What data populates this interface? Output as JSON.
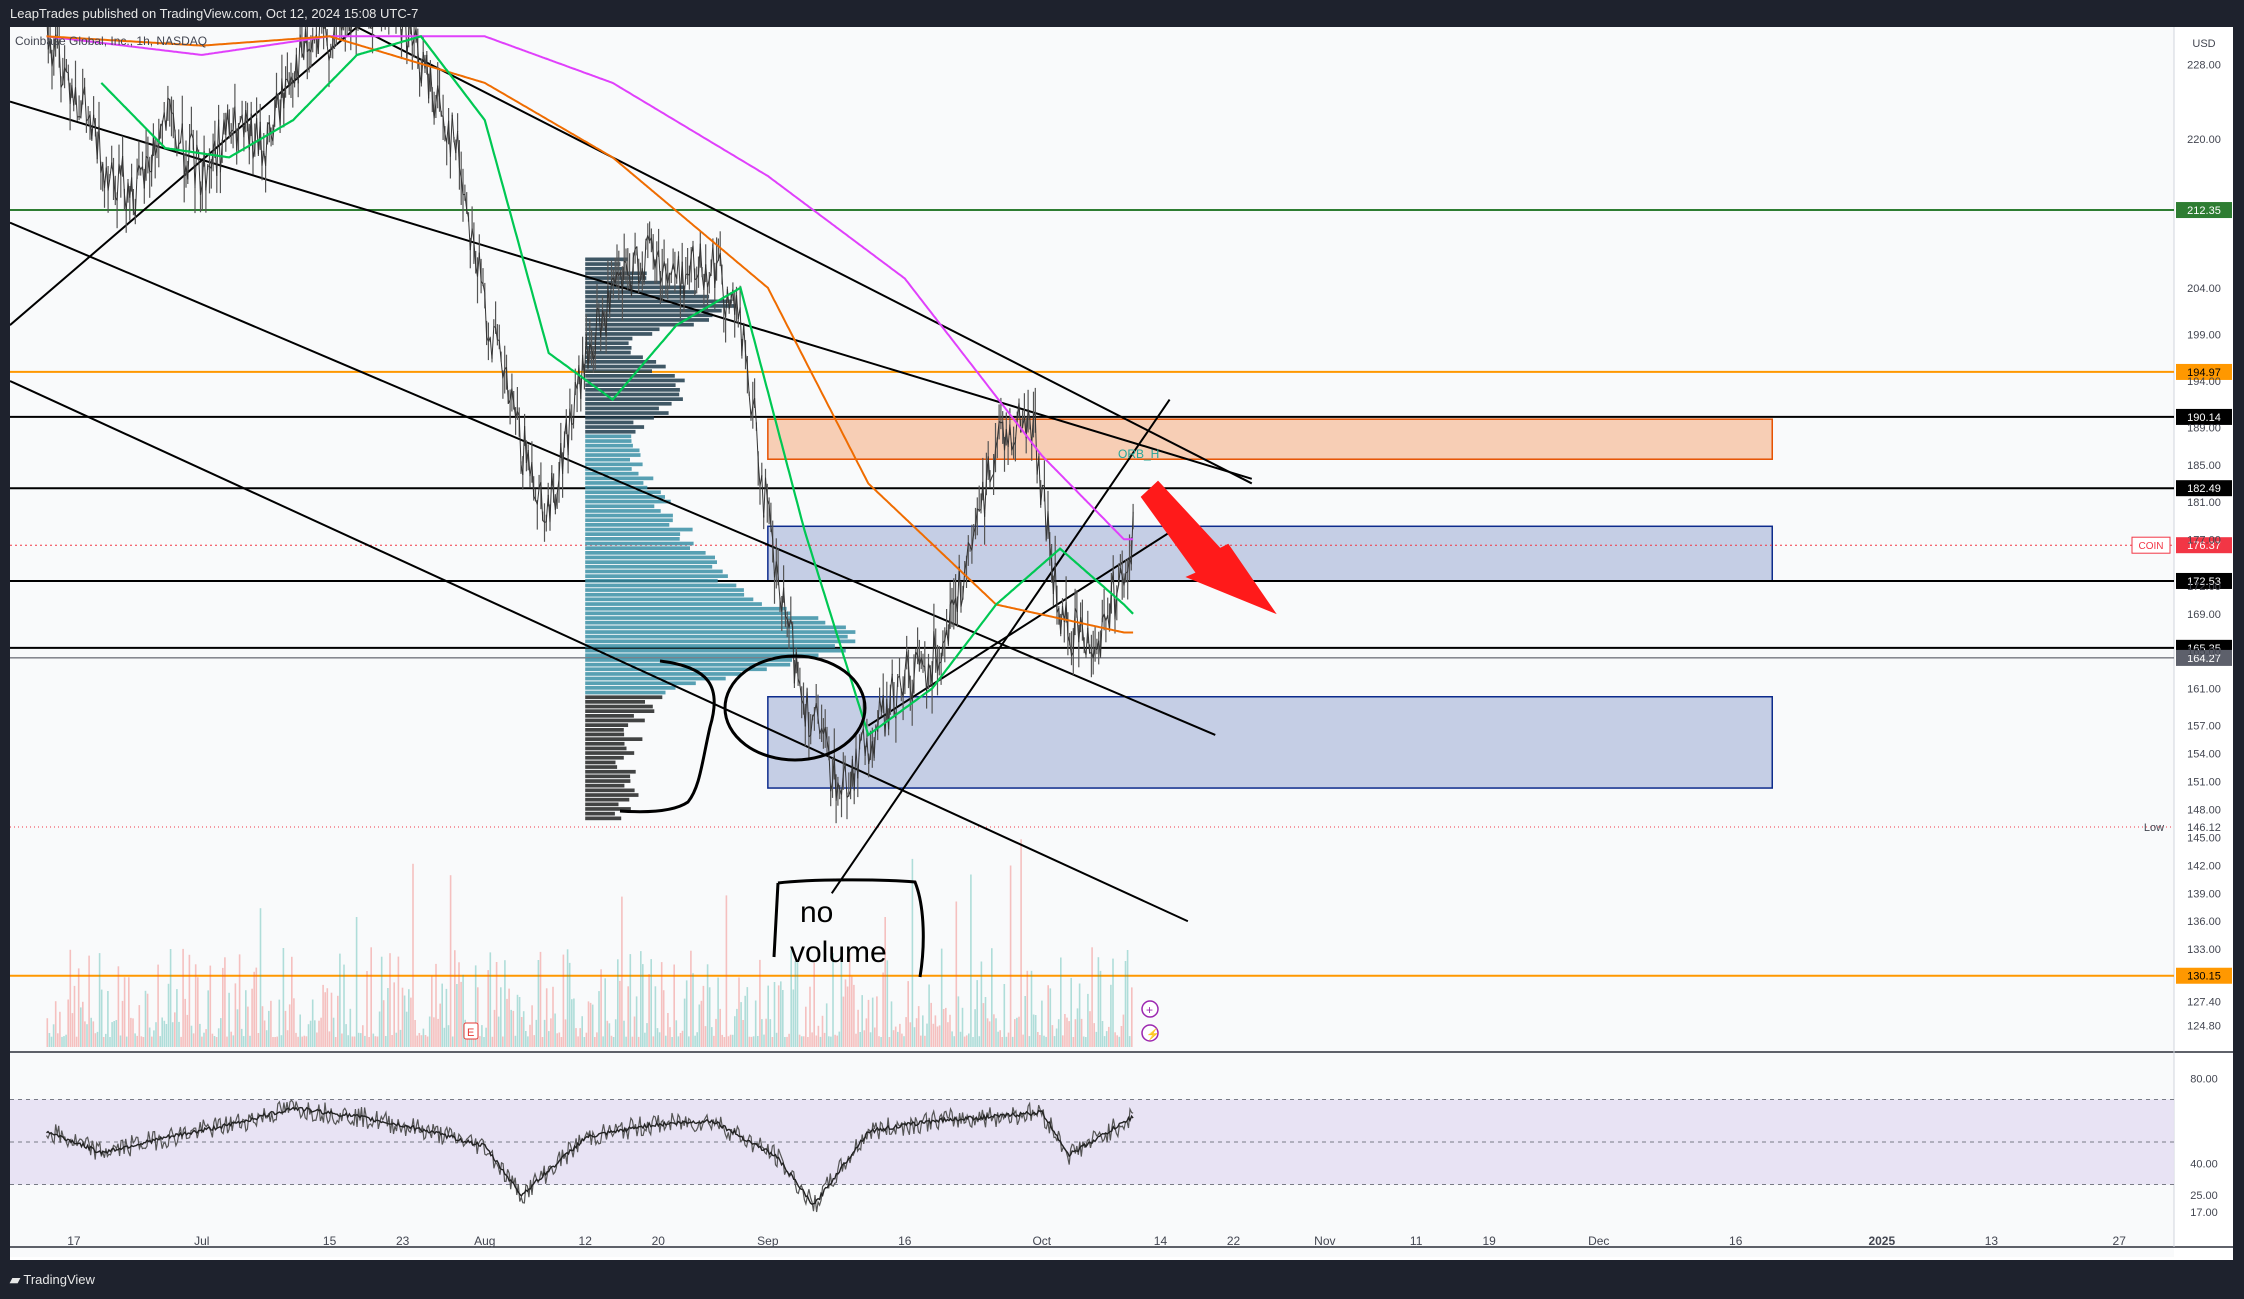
{
  "header": {
    "published": "LeapTrades published on TradingView.com, Oct 12, 2024 15:08 UTC-7"
  },
  "footer": {
    "brand": "TradingView"
  },
  "chart_data": {
    "type": "line",
    "title": "Coinbase Global, Inc., 1h, NASDAQ",
    "symbol": "COIN",
    "currency": "USD",
    "last_price": 176.37,
    "low_label": "Low",
    "low_value": 146.12,
    "ylim": [
      122.5,
      232.0
    ],
    "price_ticks": [
      228.0,
      220.0,
      204.0,
      199.0,
      194.0,
      189.0,
      185.0,
      181.0,
      177.0,
      172.0,
      169.0,
      165.0,
      161.0,
      157.0,
      154.0,
      151.0,
      148.0,
      145.0,
      142.0,
      139.0,
      136.0,
      133.0,
      127.4,
      124.8
    ],
    "price_tick_labels": [
      "228.00",
      "220.00",
      "204.00",
      "199.00",
      "194.00",
      "189.00",
      "185.00",
      "181.00",
      "177.00",
      "172.00",
      "169.00",
      "165.00",
      "161.00",
      "157.00",
      "154.00",
      "151.00",
      "148.00",
      "145.00",
      "142.00",
      "139.00",
      "136.00",
      "133.00",
      "127.40",
      "124.80"
    ],
    "horizontal_levels": [
      {
        "value": 212.35,
        "label": "212.35",
        "color": "#2e7d32"
      },
      {
        "value": 194.97,
        "label": "194.97",
        "color": "#ff9800"
      },
      {
        "value": 190.14,
        "label": "190.14",
        "color": "#000000"
      },
      {
        "value": 182.49,
        "label": "182.49",
        "color": "#000000"
      },
      {
        "value": 172.53,
        "label": "172.53",
        "color": "#000000"
      },
      {
        "value": 165.35,
        "label": "165.35",
        "color": "#000000"
      },
      {
        "value": 164.27,
        "label": "164.27",
        "color": "#434651"
      },
      {
        "value": 130.15,
        "label": "130.15",
        "color": "#ff9800"
      }
    ],
    "zones": [
      {
        "from": "2024-09-01",
        "to": "2024-12-20",
        "low": 185.6,
        "high": 189.9,
        "color": "orange"
      },
      {
        "from": "2024-09-01",
        "to": "2024-12-20",
        "low": 172.5,
        "high": 178.4,
        "color": "blue"
      },
      {
        "from": "2024-09-01",
        "to": "2024-12-20",
        "low": 150.3,
        "high": 160.1,
        "color": "blue"
      }
    ],
    "annotations": {
      "orb_label": "ORB_H",
      "note_line1": "no",
      "note_line2": "volume"
    },
    "x_ticks": [
      {
        "date": "2024-06-17",
        "label": "17"
      },
      {
        "date": "2024-07-01",
        "label": "Jul"
      },
      {
        "date": "2024-07-15",
        "label": "15"
      },
      {
        "date": "2024-07-23",
        "label": "23"
      },
      {
        "date": "2024-08-01",
        "label": "Aug"
      },
      {
        "date": "2024-08-12",
        "label": "12"
      },
      {
        "date": "2024-08-20",
        "label": "20"
      },
      {
        "date": "2024-09-01",
        "label": "Sep"
      },
      {
        "date": "2024-09-16",
        "label": "16"
      },
      {
        "date": "2024-10-01",
        "label": "Oct"
      },
      {
        "date": "2024-10-14",
        "label": "14"
      },
      {
        "date": "2024-10-22",
        "label": "22"
      },
      {
        "date": "2024-11-01",
        "label": "Nov"
      },
      {
        "date": "2024-11-11",
        "label": "11"
      },
      {
        "date": "2024-11-19",
        "label": "19"
      },
      {
        "date": "2024-12-01",
        "label": "Dec"
      },
      {
        "date": "2024-12-16",
        "label": "16"
      },
      {
        "date": "2025-01-01",
        "label": "2025"
      },
      {
        "date": "2025-01-13",
        "label": "13"
      },
      {
        "date": "2025-01-27",
        "label": "27"
      }
    ],
    "price_series": {
      "name": "COIN",
      "x": [
        "2024-06-14",
        "2024-06-17",
        "2024-06-20",
        "2024-06-24",
        "2024-06-27",
        "2024-07-01",
        "2024-07-04",
        "2024-07-08",
        "2024-07-11",
        "2024-07-15",
        "2024-07-18",
        "2024-07-22",
        "2024-07-25",
        "2024-07-29",
        "2024-08-01",
        "2024-08-05",
        "2024-08-08",
        "2024-08-12",
        "2024-08-15",
        "2024-08-19",
        "2024-08-22",
        "2024-08-26",
        "2024-08-29",
        "2024-09-02",
        "2024-09-05",
        "2024-09-09",
        "2024-09-12",
        "2024-09-16",
        "2024-09-19",
        "2024-09-23",
        "2024-09-26",
        "2024-09-30",
        "2024-10-03",
        "2024-10-07",
        "2024-10-10",
        "2024-10-11"
      ],
      "values": [
        231,
        226,
        218,
        214,
        222,
        216,
        221,
        219,
        228,
        231,
        233,
        235,
        228,
        219,
        202,
        187,
        180,
        196,
        203,
        208,
        205,
        207,
        200,
        172,
        160,
        150,
        155,
        162,
        164,
        174,
        188,
        190,
        168,
        166,
        174,
        177
      ]
    },
    "ema_fast": {
      "x": [
        "2024-06-20",
        "2024-06-27",
        "2024-07-04",
        "2024-07-11",
        "2024-07-18",
        "2024-07-25",
        "2024-08-01",
        "2024-08-08",
        "2024-08-15",
        "2024-08-22",
        "2024-08-29",
        "2024-09-05",
        "2024-09-12",
        "2024-09-19",
        "2024-09-26",
        "2024-10-03",
        "2024-10-10",
        "2024-10-11"
      ],
      "values": [
        226,
        219,
        218,
        222,
        229,
        231,
        222,
        197,
        192,
        200,
        204,
        178,
        156,
        161,
        170,
        176,
        170,
        169
      ]
    },
    "ema_mid": {
      "x": [
        "2024-06-14",
        "2024-07-01",
        "2024-07-15",
        "2024-08-01",
        "2024-08-15",
        "2024-09-01",
        "2024-09-12",
        "2024-09-26",
        "2024-10-10",
        "2024-10-11"
      ],
      "values": [
        231,
        230,
        231,
        226,
        218,
        204,
        183,
        170,
        167,
        167
      ]
    },
    "ema_slow": {
      "x": [
        "2024-06-14",
        "2024-07-01",
        "2024-07-15",
        "2024-08-01",
        "2024-08-15",
        "2024-09-01",
        "2024-09-16",
        "2024-10-01",
        "2024-10-10",
        "2024-10-11"
      ],
      "values": [
        231,
        229,
        231,
        231,
        226,
        216,
        205,
        186,
        177,
        177
      ]
    },
    "rsi_ticks": [
      80.0,
      40.0,
      25.0,
      17.0
    ],
    "rsi_tick_labels": [
      "80.00",
      "40.00",
      "25.00",
      "17.00"
    ],
    "rsi": {
      "x": [
        "2024-06-14",
        "2024-06-20",
        "2024-06-27",
        "2024-07-04",
        "2024-07-11",
        "2024-07-18",
        "2024-07-25",
        "2024-08-01",
        "2024-08-05",
        "2024-08-12",
        "2024-08-19",
        "2024-08-26",
        "2024-09-02",
        "2024-09-06",
        "2024-09-12",
        "2024-09-19",
        "2024-09-26",
        "2024-10-01",
        "2024-10-04",
        "2024-10-08",
        "2024-10-11"
      ],
      "values": [
        55,
        45,
        52,
        58,
        66,
        62,
        56,
        48,
        25,
        52,
        58,
        60,
        43,
        20,
        55,
        60,
        62,
        64,
        44,
        54,
        62
      ]
    }
  }
}
